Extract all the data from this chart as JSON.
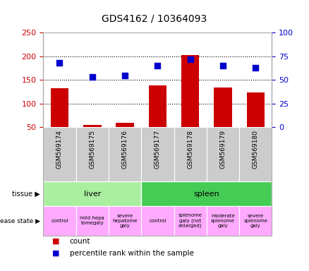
{
  "title": "GDS4162 / 10364093",
  "samples": [
    "GSM569174",
    "GSM569175",
    "GSM569176",
    "GSM569177",
    "GSM569178",
    "GSM569179",
    "GSM569180"
  ],
  "counts": [
    133,
    55,
    59,
    138,
    202,
    134,
    124
  ],
  "percentile_ranks": [
    68,
    53,
    55,
    65,
    72,
    65,
    63
  ],
  "ylim_left": [
    50,
    250
  ],
  "ylim_right": [
    0,
    100
  ],
  "yticks_left": [
    50,
    100,
    150,
    200,
    250
  ],
  "yticks_right": [
    0,
    25,
    50,
    75,
    100
  ],
  "bar_color": "#cc0000",
  "dot_color": "#0000cc",
  "tissue_liver_color": "#aaeea0",
  "tissue_spleen_color": "#44cc55",
  "disease_color": "#ffaaff",
  "xtick_bg_color": "#cccccc",
  "left_axis_color": "#cc0000",
  "right_axis_color": "#0000cc",
  "legend_count": "count",
  "legend_percentile": "percentile rank within the sample",
  "disease_labels": [
    "control",
    "mild hepa\ntomegaly",
    "severe\nhepatome\ngaly",
    "control",
    "splenome\ngaly (not\nenlarged)",
    "moderate\nsplenome\ngaly",
    "severe\nsplenome\ngaly"
  ]
}
